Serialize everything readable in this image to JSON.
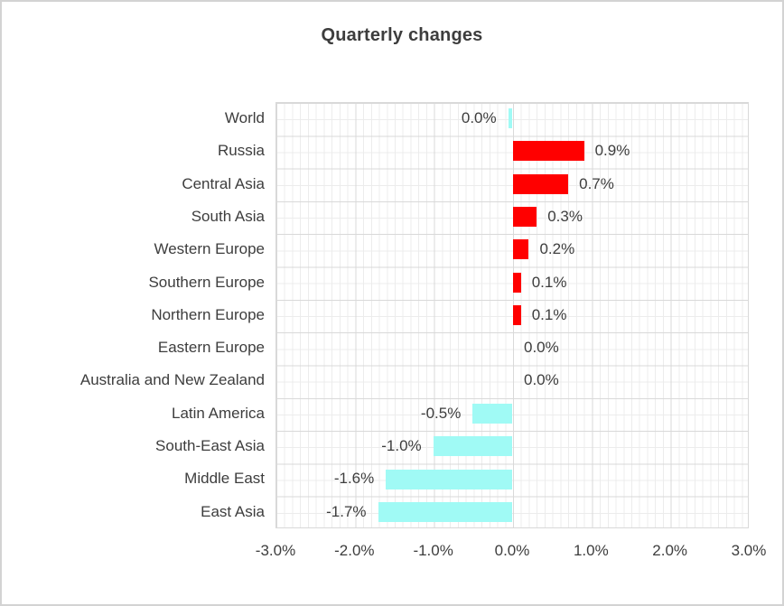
{
  "window": {
    "background": "#ffffff",
    "border_color": "#d3d3d3"
  },
  "chart_data": {
    "type": "bar",
    "orientation": "horizontal",
    "title": "Quarterly changes",
    "categories": [
      "World",
      "Russia",
      "Central Asia",
      "South Asia",
      "Western Europe",
      "Southern Europe",
      "Northern Europe",
      "Eastern Europe",
      "Australia and New Zealand",
      "Latin America",
      "South-East Asia",
      "Middle East",
      "East Asia"
    ],
    "values": [
      -0.05,
      0.9,
      0.7,
      0.3,
      0.2,
      0.1,
      0.1,
      0.0,
      0.0,
      -0.5,
      -1.0,
      -1.6,
      -1.7
    ],
    "data_labels": [
      "0.0%",
      "0.9%",
      "0.7%",
      "0.3%",
      "0.2%",
      "0.1%",
      "0.1%",
      "0.0%",
      "0.0%",
      "-0.5%",
      "-1.0%",
      "-1.6%",
      "-1.7%"
    ],
    "x_ticks": [
      "-3.0%",
      "-2.0%",
      "-1.0%",
      "0.0%",
      "1.0%",
      "2.0%",
      "3.0%"
    ],
    "xlim": [
      -3,
      3
    ],
    "xlabel": "",
    "ylabel": "",
    "grid": {
      "minor": true,
      "major": true,
      "minor_step_pct": 0.1,
      "major_step_pct": 1.0
    },
    "legend": "none",
    "colors": {
      "positive_bar": "#ff0000",
      "negative_bar": "#a0faf5",
      "grid_minor": "#ececec",
      "grid_major": "#d9d9d9",
      "text": "#3d3d3d"
    }
  }
}
